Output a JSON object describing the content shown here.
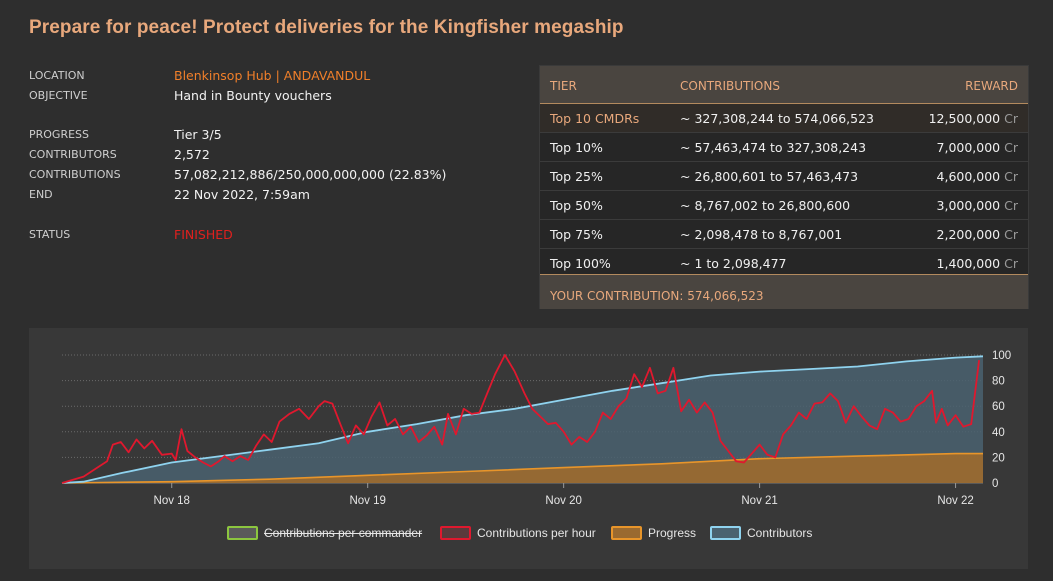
{
  "title": "Prepare for peace! Protect deliveries for the Kingfisher megaship",
  "info": {
    "location_label": "LOCATION",
    "location_value": "Blenkinsop Hub | ANDAVANDUL",
    "objective_label": "OBJECTIVE",
    "objective_value": "Hand in Bounty vouchers",
    "progress_label": "PROGRESS",
    "progress_value": "Tier 3/5",
    "contributors_label": "CONTRIBUTORS",
    "contributors_value": "2,572",
    "contributions_label": "CONTRIBUTIONS",
    "contributions_value": "57,082,212,886/250,000,000,000 (22.83%)",
    "end_label": "END",
    "end_value": "22 Nov 2022, 7:59am",
    "status_label": "STATUS",
    "status_value": "FINISHED"
  },
  "tiers": {
    "headers": {
      "tier": "TIER",
      "contributions": "CONTRIBUTIONS",
      "reward": "REWARD"
    },
    "currency": "Cr",
    "rows": [
      {
        "tier": "Top 10 CMDRs",
        "contributions": "~ 327,308,244 to 574,066,523",
        "reward": "12,500,000"
      },
      {
        "tier": "Top 10%",
        "contributions": "~ 57,463,474 to 327,308,243",
        "reward": "7,000,000"
      },
      {
        "tier": "Top 25%",
        "contributions": "~ 26,800,601 to 57,463,473",
        "reward": "4,600,000"
      },
      {
        "tier": "Top 50%",
        "contributions": "~ 8,767,002 to 26,800,600",
        "reward": "3,000,000"
      },
      {
        "tier": "Top 75%",
        "contributions": "~ 2,098,478 to 8,767,001",
        "reward": "2,200,000"
      },
      {
        "tier": "Top 100%",
        "contributions": "~ 1 to 2,098,477",
        "reward": "1,400,000"
      }
    ],
    "your_contribution": "YOUR CONTRIBUTION: 574,066,523"
  },
  "legend": {
    "per_commander": "Contributions per commander",
    "per_hour": "Contributions per hour",
    "progress": "Progress",
    "contributors": "Contributors"
  },
  "colors": {
    "accent": "#e8a87c",
    "orange": "#f07f2a",
    "status_red": "#e0201e",
    "line_red": "#e0182e",
    "line_blue": "#8fd3ef",
    "progress_orange": "#e8952a",
    "legend_green": "#8cc63f"
  },
  "chart_data": {
    "type": "line",
    "x_ticks": [
      "Nov 18",
      "Nov 19",
      "Nov 20",
      "Nov 21",
      "Nov 22"
    ],
    "x_tick_positions_days": [
      1,
      2,
      3,
      4,
      5
    ],
    "x_range_days": [
      0.44,
      5.14
    ],
    "ylim": [
      0,
      100
    ],
    "y_ticks": [
      0,
      20,
      40,
      60,
      80,
      100
    ],
    "grid": true,
    "legend_position": "bottom",
    "series": [
      {
        "name": "Contributors",
        "color": "#8fd3ef",
        "area": true,
        "points": [
          [
            0.44,
            0
          ],
          [
            0.55,
            1
          ],
          [
            0.75,
            8
          ],
          [
            1.0,
            16
          ],
          [
            1.25,
            21
          ],
          [
            1.5,
            26
          ],
          [
            1.75,
            31
          ],
          [
            2.0,
            40
          ],
          [
            2.25,
            46
          ],
          [
            2.5,
            53
          ],
          [
            2.75,
            58
          ],
          [
            3.0,
            65
          ],
          [
            3.25,
            72
          ],
          [
            3.5,
            78
          ],
          [
            3.75,
            84
          ],
          [
            4.0,
            87
          ],
          [
            4.25,
            89
          ],
          [
            4.5,
            91
          ],
          [
            4.75,
            95
          ],
          [
            5.0,
            98
          ],
          [
            5.14,
            99
          ]
        ]
      },
      {
        "name": "Contributions per hour",
        "color": "#e0182e",
        "points": [
          [
            0.44,
            0
          ],
          [
            0.55,
            5
          ],
          [
            0.62,
            12
          ],
          [
            0.67,
            17
          ],
          [
            0.7,
            30
          ],
          [
            0.74,
            32
          ],
          [
            0.78,
            24
          ],
          [
            0.82,
            34
          ],
          [
            0.86,
            27
          ],
          [
            0.9,
            33
          ],
          [
            0.95,
            22
          ],
          [
            1.0,
            23
          ],
          [
            1.02,
            18
          ],
          [
            1.05,
            42
          ],
          [
            1.08,
            25
          ],
          [
            1.12,
            20
          ],
          [
            1.16,
            16
          ],
          [
            1.2,
            13
          ],
          [
            1.24,
            17
          ],
          [
            1.27,
            21
          ],
          [
            1.31,
            17
          ],
          [
            1.35,
            21
          ],
          [
            1.39,
            18
          ],
          [
            1.43,
            29
          ],
          [
            1.47,
            38
          ],
          [
            1.51,
            32
          ],
          [
            1.55,
            48
          ],
          [
            1.6,
            54
          ],
          [
            1.65,
            58
          ],
          [
            1.7,
            50
          ],
          [
            1.75,
            60
          ],
          [
            1.78,
            64
          ],
          [
            1.82,
            62
          ],
          [
            1.86,
            46
          ],
          [
            1.9,
            31
          ],
          [
            1.94,
            45
          ],
          [
            1.98,
            38
          ],
          [
            2.02,
            52
          ],
          [
            2.06,
            63
          ],
          [
            2.1,
            45
          ],
          [
            2.14,
            50
          ],
          [
            2.18,
            38
          ],
          [
            2.22,
            44
          ],
          [
            2.26,
            32
          ],
          [
            2.3,
            37
          ],
          [
            2.34,
            44
          ],
          [
            2.38,
            30
          ],
          [
            2.41,
            54
          ],
          [
            2.45,
            38
          ],
          [
            2.49,
            58
          ],
          [
            2.53,
            54
          ],
          [
            2.57,
            55
          ],
          [
            2.61,
            70
          ],
          [
            2.65,
            85
          ],
          [
            2.7,
            100
          ],
          [
            2.75,
            87
          ],
          [
            2.8,
            70
          ],
          [
            2.84,
            58
          ],
          [
            2.88,
            52
          ],
          [
            2.92,
            46
          ],
          [
            2.96,
            47
          ],
          [
            3.0,
            40
          ],
          [
            3.04,
            30
          ],
          [
            3.08,
            36
          ],
          [
            3.12,
            32
          ],
          [
            3.16,
            40
          ],
          [
            3.2,
            55
          ],
          [
            3.24,
            50
          ],
          [
            3.28,
            60
          ],
          [
            3.32,
            66
          ],
          [
            3.36,
            85
          ],
          [
            3.4,
            75
          ],
          [
            3.44,
            90
          ],
          [
            3.48,
            70
          ],
          [
            3.52,
            72
          ],
          [
            3.56,
            90
          ],
          [
            3.6,
            56
          ],
          [
            3.64,
            65
          ],
          [
            3.68,
            55
          ],
          [
            3.72,
            63
          ],
          [
            3.76,
            55
          ],
          [
            3.8,
            33
          ],
          [
            3.84,
            25
          ],
          [
            3.88,
            17
          ],
          [
            3.92,
            16
          ],
          [
            3.96,
            23
          ],
          [
            4.0,
            30
          ],
          [
            4.04,
            22
          ],
          [
            4.08,
            20
          ],
          [
            4.12,
            38
          ],
          [
            4.16,
            45
          ],
          [
            4.2,
            55
          ],
          [
            4.24,
            50
          ],
          [
            4.28,
            62
          ],
          [
            4.32,
            63
          ],
          [
            4.36,
            70
          ],
          [
            4.4,
            64
          ],
          [
            4.44,
            47
          ],
          [
            4.48,
            60
          ],
          [
            4.52,
            52
          ],
          [
            4.56,
            45
          ],
          [
            4.6,
            42
          ],
          [
            4.64,
            58
          ],
          [
            4.68,
            55
          ],
          [
            4.72,
            48
          ],
          [
            4.76,
            50
          ],
          [
            4.8,
            60
          ],
          [
            4.84,
            64
          ],
          [
            4.88,
            72
          ],
          [
            4.9,
            47
          ],
          [
            4.93,
            58
          ],
          [
            4.96,
            45
          ],
          [
            5.0,
            53
          ],
          [
            5.04,
            44
          ],
          [
            5.08,
            46
          ],
          [
            5.12,
            96
          ]
        ]
      },
      {
        "name": "Progress",
        "color": "#e8952a",
        "area": true,
        "points": [
          [
            0.44,
            0
          ],
          [
            1.0,
            1
          ],
          [
            1.5,
            3
          ],
          [
            2.0,
            6
          ],
          [
            2.5,
            9
          ],
          [
            3.0,
            12
          ],
          [
            3.5,
            15
          ],
          [
            4.0,
            19
          ],
          [
            4.5,
            21
          ],
          [
            5.0,
            23
          ],
          [
            5.14,
            23
          ]
        ]
      },
      {
        "name": "Contributions per commander",
        "color": "#8cc63f",
        "hidden": true,
        "points": []
      }
    ]
  }
}
